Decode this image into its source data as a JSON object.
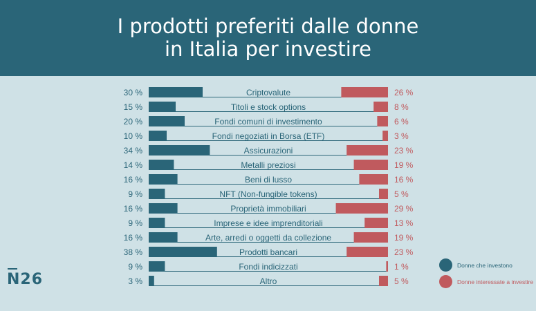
{
  "title": {
    "line1": "I prodotti preferiti dalle donne",
    "line2": "in Italia per investire"
  },
  "logo": {
    "text": "N26"
  },
  "legend": {
    "items": [
      {
        "label": "Donne che investono",
        "color": "#2a6578"
      },
      {
        "label": "Donne interessate a investire",
        "color": "#c05a5e"
      }
    ]
  },
  "colors": {
    "left_bar": "#2a6578",
    "right_bar": "#c05a5e",
    "left_text": "#2a6578",
    "right_text": "#c05a5e",
    "baseline": "#2a6578"
  },
  "chart_data": {
    "type": "bar",
    "title": "I prodotti preferiti dalle donne in Italia per investire",
    "categories": [
      "Criptovalute",
      "Titoli e stock options",
      "Fondi comuni di investimento",
      "Fondi negoziati in Borsa (ETF)",
      "Assicurazioni",
      "Metalli preziosi",
      "Beni di lusso",
      "NFT (Non-fungible tokens)",
      "Proprietà immobiliari",
      "Imprese e idee imprenditoriali",
      "Arte, arredi o oggetti da collezione",
      "Prodotti bancari",
      "Fondi indicizzati",
      "Altro"
    ],
    "series": [
      {
        "name": "Donne che investono",
        "values": [
          30,
          15,
          20,
          10,
          34,
          14,
          16,
          9,
          16,
          9,
          16,
          38,
          9,
          3
        ]
      },
      {
        "name": "Donne interessate a investire",
        "values": [
          26,
          8,
          6,
          3,
          23,
          19,
          16,
          5,
          29,
          13,
          19,
          23,
          1,
          5
        ]
      }
    ],
    "unit": "%",
    "xlabel": "",
    "ylabel": "",
    "grid": false,
    "legend_position": "right"
  }
}
